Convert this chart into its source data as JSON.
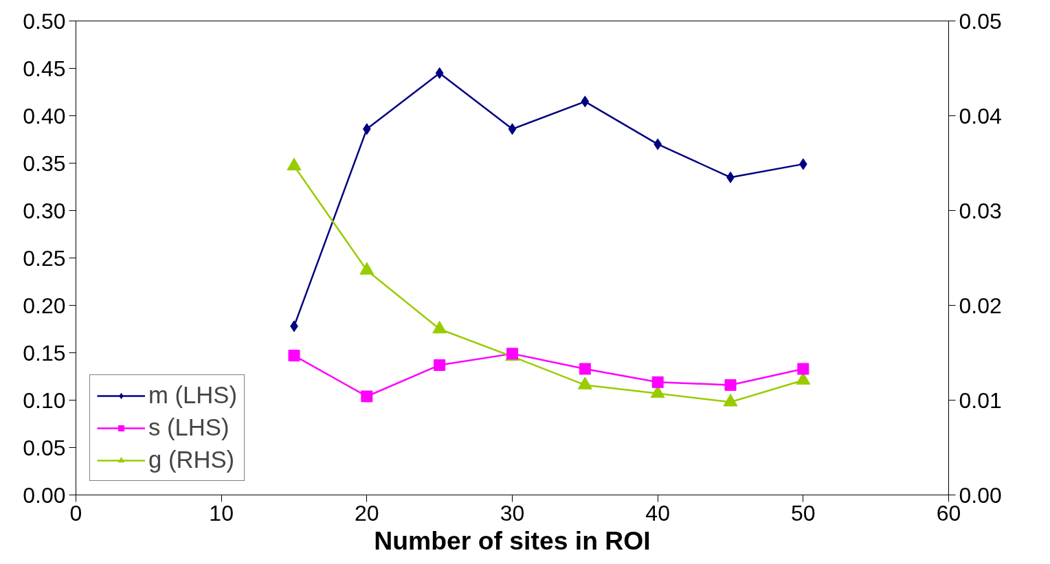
{
  "chart_data": {
    "type": "line",
    "xlabel": "Number of sites in ROI",
    "x": [
      15,
      20,
      25,
      30,
      35,
      40,
      45,
      50
    ],
    "series": [
      {
        "name": "m (LHS)",
        "color": "#000080",
        "marker": "diamond",
        "values": [
          0.178,
          0.386,
          0.445,
          0.386,
          0.415,
          0.37,
          0.335,
          0.349
        ]
      },
      {
        "name": "s (LHS)",
        "color": "#ff00ff",
        "marker": "square",
        "values": [
          0.147,
          0.104,
          0.137,
          0.149,
          0.133,
          0.119,
          0.116,
          0.133
        ]
      },
      {
        "name": "g (RHS)",
        "color": "#99cc00",
        "marker": "triangle",
        "axis": "y2",
        "values": [
          0.0347,
          0.0237,
          0.0175,
          0.0146,
          0.0116,
          0.0107,
          0.0098,
          0.0121
        ]
      }
    ],
    "xlim": [
      0,
      60
    ],
    "xticks": [
      0,
      10,
      20,
      30,
      40,
      50,
      60
    ],
    "ylim": [
      0,
      0.5
    ],
    "yticks": [
      {
        "value": 0,
        "label": "0.00"
      },
      {
        "value": 0.05,
        "label": "0.05"
      },
      {
        "value": 0.1,
        "label": "0.10"
      },
      {
        "value": 0.15,
        "label": "0.15"
      },
      {
        "value": 0.2,
        "label": "0.20"
      },
      {
        "value": 0.25,
        "label": "0.25"
      },
      {
        "value": 0.3,
        "label": "0.30"
      },
      {
        "value": 0.35,
        "label": "0.35"
      },
      {
        "value": 0.4,
        "label": "0.40"
      },
      {
        "value": 0.45,
        "label": "0.45"
      },
      {
        "value": 0.5,
        "label": "0.50"
      }
    ],
    "y2lim": [
      0,
      0.05
    ],
    "y2ticks": [
      {
        "value": 0,
        "label": "0.00"
      },
      {
        "value": 0.01,
        "label": "0.01"
      },
      {
        "value": 0.02,
        "label": "0.02"
      },
      {
        "value": 0.03,
        "label": "0.03"
      },
      {
        "value": 0.04,
        "label": "0.04"
      },
      {
        "value": 0.05,
        "label": "0.05"
      }
    ],
    "grid": false,
    "legend": "bottom left",
    "line_style": "solid"
  }
}
